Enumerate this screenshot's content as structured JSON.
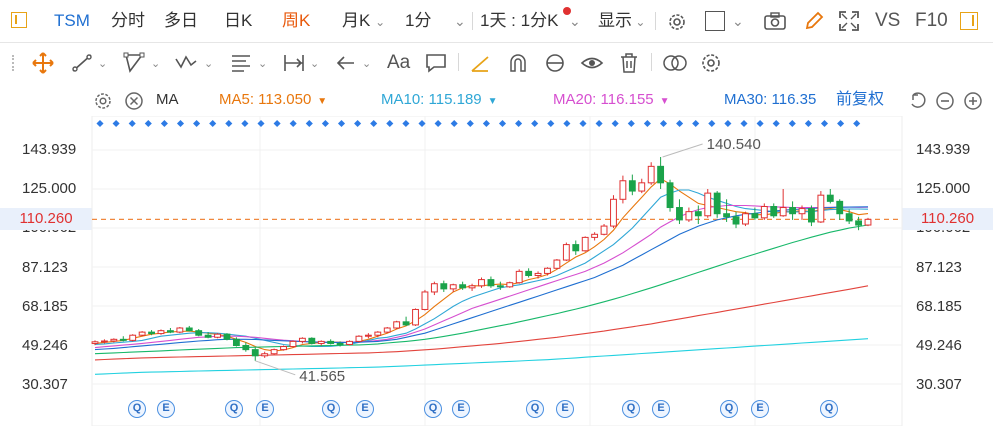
{
  "toolbar": {
    "ticker": "TSM",
    "periods": [
      "分时",
      "多日",
      "日K",
      "周K",
      "月K"
    ],
    "active_period": "周K",
    "interval": "1分",
    "combo": "1天 : 1分K",
    "display": "显示",
    "vs_label": "VS",
    "f10_label": "F10",
    "accent": "#e8590c"
  },
  "ma_bar": {
    "label": "MA",
    "items": [
      {
        "name": "MA5",
        "value_text": "MA5: 113.050",
        "color": "#e8770d"
      },
      {
        "name": "MA10",
        "value_text": "MA10: 115.189",
        "color": "#2fa7d6"
      },
      {
        "name": "MA20",
        "value_text": "MA20: 116.155",
        "color": "#d64fd0"
      },
      {
        "name": "MA30",
        "value_text": "MA30: 116.35",
        "color": "#1f6fd1"
      }
    ],
    "adjust": "前复权"
  },
  "chart_data": {
    "type": "candlestick",
    "y_ticks": [
      "143.939",
      "125.000",
      "106.062",
      "87.123",
      "68.185",
      "49.246",
      "30.307"
    ],
    "ylim": [
      30.307,
      143.939
    ],
    "current_price": "110.260",
    "current_price_value": 110.26,
    "annotations": {
      "high": "140.540",
      "low": "41.565"
    },
    "event_markers": [
      "Q",
      "E",
      "Q",
      "E",
      "Q",
      "E",
      "Q",
      "E",
      "Q",
      "E",
      "Q",
      "E",
      "Q",
      "E",
      "Q"
    ],
    "up_color": "#e03131",
    "down_color": "#1aa34a",
    "candles": [
      [
        50.0,
        51.5,
        49.2,
        50.8
      ],
      [
        50.8,
        52.0,
        50.0,
        51.2
      ],
      [
        51.2,
        52.5,
        50.5,
        52.0
      ],
      [
        52.0,
        53.5,
        51.0,
        51.5
      ],
      [
        51.5,
        54.5,
        51.0,
        54.0
      ],
      [
        54.0,
        56.0,
        53.5,
        55.5
      ],
      [
        55.5,
        56.5,
        54.0,
        54.8
      ],
      [
        54.8,
        56.8,
        54.2,
        56.2
      ],
      [
        56.2,
        57.5,
        55.0,
        55.5
      ],
      [
        55.5,
        58.0,
        55.0,
        57.5
      ],
      [
        57.5,
        58.5,
        55.8,
        56.2
      ],
      [
        56.2,
        57.0,
        53.5,
        54.0
      ],
      [
        54.0,
        55.5,
        52.5,
        53.0
      ],
      [
        53.0,
        55.0,
        52.5,
        54.5
      ],
      [
        54.5,
        55.0,
        51.5,
        52.0
      ],
      [
        52.0,
        53.0,
        48.5,
        49.0
      ],
      [
        49.0,
        50.5,
        46.0,
        47.0
      ],
      [
        47.0,
        48.0,
        41.565,
        44.0
      ],
      [
        44.0,
        46.0,
        43.0,
        45.0
      ],
      [
        45.0,
        47.5,
        44.5,
        47.0
      ],
      [
        47.0,
        49.0,
        46.5,
        48.5
      ],
      [
        48.5,
        51.5,
        48.0,
        51.0
      ],
      [
        51.0,
        53.0,
        50.0,
        52.5
      ],
      [
        52.5,
        53.0,
        49.5,
        50.0
      ],
      [
        50.0,
        51.5,
        49.0,
        51.0
      ],
      [
        51.0,
        52.0,
        49.5,
        50.0
      ],
      [
        50.0,
        51.0,
        48.5,
        49.5
      ],
      [
        49.5,
        51.5,
        49.0,
        51.0
      ],
      [
        51.0,
        54.0,
        50.5,
        53.5
      ],
      [
        53.5,
        55.0,
        52.5,
        54.0
      ],
      [
        54.0,
        56.0,
        53.0,
        55.5
      ],
      [
        55.5,
        58.0,
        55.0,
        57.5
      ],
      [
        57.5,
        61.0,
        57.0,
        60.5
      ],
      [
        60.5,
        63.0,
        58.5,
        59.0
      ],
      [
        59.0,
        67.0,
        58.5,
        66.5
      ],
      [
        66.5,
        76.0,
        66.0,
        75.0
      ],
      [
        75.0,
        80.0,
        73.5,
        79.0
      ],
      [
        79.0,
        80.5,
        75.0,
        76.5
      ],
      [
        76.5,
        79.0,
        75.0,
        78.5
      ],
      [
        78.5,
        80.0,
        76.0,
        77.0
      ],
      [
        77.0,
        79.0,
        75.5,
        78.0
      ],
      [
        78.0,
        82.0,
        77.0,
        81.0
      ],
      [
        81.0,
        82.5,
        77.0,
        78.0
      ],
      [
        78.0,
        80.0,
        76.0,
        77.5
      ],
      [
        77.5,
        80.0,
        77.0,
        79.5
      ],
      [
        79.5,
        86.0,
        79.0,
        85.0
      ],
      [
        85.0,
        86.5,
        82.0,
        83.0
      ],
      [
        83.0,
        85.0,
        81.5,
        84.0
      ],
      [
        84.0,
        87.0,
        83.0,
        86.5
      ],
      [
        86.5,
        91.0,
        86.0,
        90.5
      ],
      [
        90.5,
        99.0,
        90.0,
        98.0
      ],
      [
        98.0,
        100.0,
        93.0,
        95.0
      ],
      [
        95.0,
        102.0,
        94.5,
        101.5
      ],
      [
        101.5,
        104.0,
        100.0,
        103.0
      ],
      [
        103.0,
        108.0,
        102.5,
        107.0
      ],
      [
        107.0,
        122.0,
        106.0,
        120.0
      ],
      [
        120.0,
        131.5,
        118.0,
        129.0
      ],
      [
        129.0,
        132.0,
        122.0,
        124.0
      ],
      [
        124.0,
        130.0,
        123.0,
        128.0
      ],
      [
        128.0,
        138.0,
        127.0,
        136.0
      ],
      [
        136.0,
        140.54,
        125.0,
        128.0
      ],
      [
        128.0,
        129.5,
        114.0,
        116.0
      ],
      [
        116.0,
        120.0,
        108.0,
        110.0
      ],
      [
        110.0,
        116.0,
        109.0,
        114.0
      ],
      [
        114.0,
        117.0,
        108.0,
        112.0
      ],
      [
        112.0,
        125.0,
        111.0,
        123.0
      ],
      [
        123.0,
        124.0,
        111.0,
        113.0
      ],
      [
        113.0,
        120.0,
        109.0,
        111.5
      ],
      [
        111.5,
        114.0,
        106.0,
        108.0
      ],
      [
        108.0,
        114.0,
        107.0,
        113.0
      ],
      [
        113.0,
        116.0,
        110.0,
        111.0
      ],
      [
        111.0,
        118.0,
        110.0,
        116.5
      ],
      [
        116.5,
        118.0,
        111.0,
        112.0
      ],
      [
        112.0,
        125.0,
        111.5,
        116.0
      ],
      [
        116.0,
        119.0,
        110.0,
        113.0
      ],
      [
        113.0,
        117.0,
        110.0,
        115.5
      ],
      [
        115.5,
        117.0,
        107.0,
        109.0
      ],
      [
        109.0,
        124.0,
        108.5,
        122.0
      ],
      [
        122.0,
        125.0,
        118.0,
        119.0
      ],
      [
        119.0,
        120.0,
        110.0,
        113.0
      ],
      [
        113.0,
        115.0,
        108.0,
        109.5
      ],
      [
        109.5,
        111.5,
        105.0,
        107.5
      ],
      [
        107.5,
        111.0,
        107.0,
        110.26
      ]
    ],
    "ma_series": [
      {
        "name": "MA5",
        "color": "#e8770d",
        "values": [
          50,
          50.5,
          51,
          51.5,
          52.5,
          53.5,
          54.5,
          55,
          55.6,
          55.8,
          56,
          55.5,
          55,
          54.4,
          53.5,
          52,
          50.5,
          48.5,
          47,
          46.4,
          46.8,
          48,
          49.5,
          50,
          50.5,
          50.7,
          50.6,
          50.3,
          51,
          52,
          53.5,
          55,
          57,
          58.5,
          61,
          64,
          68,
          71.5,
          75,
          77,
          78,
          78,
          78.5,
          78.8,
          78.6,
          79.5,
          81,
          82,
          83.5,
          86,
          89,
          92,
          94,
          97,
          100.5,
          105,
          111,
          116,
          121,
          126,
          130,
          127.5,
          124,
          121,
          118,
          117,
          116,
          115,
          114,
          113.5,
          112.5,
          112.5,
          113,
          114,
          114,
          114.5,
          114,
          115,
          115.5,
          115,
          114,
          112.5,
          113.05
        ]
      },
      {
        "name": "MA10",
        "color": "#2fa7d6",
        "values": [
          49.5,
          49.8,
          50.2,
          50.6,
          51,
          51.5,
          52.5,
          53.5,
          54,
          54.5,
          55,
          55.2,
          55.2,
          55,
          54.6,
          54,
          53.5,
          52.5,
          51.5,
          50.5,
          49.5,
          49,
          48.8,
          48.5,
          48.5,
          48.6,
          49,
          49.5,
          50.5,
          51.5,
          52.5,
          53,
          54,
          55,
          57,
          59.5,
          62,
          65,
          68,
          70.5,
          72.5,
          74,
          75.5,
          77,
          77.8,
          78.5,
          79.5,
          80.5,
          81.5,
          83,
          85,
          87,
          89,
          92,
          95,
          98,
          102,
          106,
          111,
          116,
          121,
          123,
          124.5,
          124.5,
          123,
          121,
          119.5,
          118,
          116.5,
          115.5,
          115,
          114.5,
          114,
          114,
          113.8,
          114,
          114,
          114.5,
          115,
          115.2,
          115.3,
          115.3,
          115.189
        ]
      },
      {
        "name": "MA20",
        "color": "#d64fd0",
        "values": [
          48,
          48.4,
          48.8,
          49.2,
          49.6,
          50,
          50.5,
          51,
          51.5,
          52,
          52.5,
          53,
          53.2,
          53.5,
          53.5,
          53.5,
          53.3,
          53,
          52.5,
          52,
          51.6,
          51.3,
          51,
          50.8,
          50.6,
          50.5,
          50.5,
          50.6,
          50.8,
          51,
          51.5,
          52,
          53,
          54,
          55.5,
          57,
          59,
          61,
          63,
          65,
          67,
          68.5,
          70,
          71.5,
          73,
          74.5,
          76,
          77.5,
          79,
          80.5,
          82,
          83.5,
          85,
          87,
          89,
          91.5,
          94,
          97,
          100,
          103,
          106.5,
          109,
          111.5,
          113.5,
          115,
          116,
          116.5,
          117,
          117,
          117,
          116.8,
          116.5,
          116.3,
          116.2,
          116,
          116,
          116,
          116,
          116.1,
          116.2,
          116.2,
          116.1,
          116.155
        ]
      },
      {
        "name": "MA30",
        "color": "#1f6fd1",
        "values": [
          47,
          47.3,
          47.6,
          48,
          48.4,
          48.8,
          49.2,
          49.6,
          50,
          50.4,
          50.8,
          51.2,
          51.5,
          51.8,
          52,
          52,
          52,
          51.9,
          51.7,
          51.5,
          51.3,
          51.1,
          50.9,
          50.7,
          50.6,
          50.5,
          50.5,
          50.5,
          50.6,
          50.8,
          51,
          51.5,
          52,
          53,
          54,
          55,
          56.5,
          58,
          59.5,
          61,
          62.5,
          64,
          65.5,
          67,
          68.5,
          70,
          71.5,
          73,
          74.5,
          76,
          77.5,
          79,
          80.5,
          82,
          84,
          86,
          88,
          90.5,
          93,
          95.5,
          98,
          100.5,
          103,
          105,
          107,
          108.5,
          110,
          111,
          112,
          112.7,
          113.2,
          113.8,
          114.3,
          114.7,
          115,
          115.3,
          115.6,
          115.8,
          116,
          116.1,
          116.2,
          116.3,
          116.35
        ]
      },
      {
        "name": "MA60",
        "color": "#18b86a",
        "values": [
          45,
          45.2,
          45.4,
          45.6,
          45.8,
          46,
          46.2,
          46.4,
          46.6,
          46.8,
          47,
          47.2,
          47.4,
          47.6,
          47.8,
          48,
          48.1,
          48.2,
          48.3,
          48.4,
          48.5,
          48.6,
          48.7,
          48.8,
          48.9,
          49,
          49.1,
          49.2,
          49.3,
          49.5,
          49.8,
          50.2,
          50.6,
          51,
          51.5,
          52,
          52.7,
          53.4,
          54.2,
          55,
          55.9,
          56.8,
          57.7,
          58.6,
          59.5,
          60.5,
          61.5,
          62.5,
          63.5,
          64.5,
          65.6,
          66.7,
          67.8,
          69,
          70.2,
          71.5,
          72.8,
          74.2,
          75.6,
          77,
          78.5,
          80,
          81.5,
          83,
          84.5,
          86,
          87.5,
          89,
          90.5,
          92,
          93.4,
          94.8,
          96.2,
          97.6,
          99,
          100.3,
          101.6,
          102.8,
          104,
          105,
          106,
          106.8,
          107.5
        ]
      },
      {
        "name": "MA120",
        "color": "#e2443d",
        "values": [
          42,
          42.2,
          42.4,
          42.6,
          42.8,
          43,
          43.1,
          43.2,
          43.3,
          43.4,
          43.5,
          43.6,
          43.7,
          43.8,
          43.9,
          44,
          44.1,
          44.2,
          44.3,
          44.4,
          44.5,
          44.6,
          44.7,
          44.8,
          44.9,
          45,
          45.1,
          45.2,
          45.3,
          45.4,
          45.6,
          45.8,
          46,
          46.3,
          46.6,
          46.9,
          47.2,
          47.6,
          48,
          48.4,
          48.8,
          49.2,
          49.6,
          50,
          50.5,
          51,
          51.5,
          52,
          52.5,
          53,
          53.6,
          54.2,
          54.8,
          55.4,
          56,
          56.7,
          57.4,
          58.1,
          58.8,
          59.5,
          60.3,
          61.1,
          61.9,
          62.7,
          63.5,
          64.3,
          65.1,
          65.9,
          66.7,
          67.5,
          68.3,
          69.1,
          69.9,
          70.7,
          71.5,
          72.3,
          73.1,
          73.9,
          74.7,
          75.5,
          76.3,
          77.1,
          78
        ]
      },
      {
        "name": "MA250",
        "color": "#22d1e0",
        "values": [
          35,
          35.2,
          35.4,
          35.6,
          35.8,
          36,
          36.1,
          36.2,
          36.3,
          36.4,
          36.5,
          36.6,
          36.7,
          36.8,
          36.9,
          37,
          37.1,
          37.2,
          37.3,
          37.4,
          37.5,
          37.6,
          37.7,
          37.8,
          37.9,
          38,
          38.1,
          38.2,
          38.3,
          38.4,
          38.5,
          38.7,
          38.9,
          39.1,
          39.3,
          39.5,
          39.7,
          39.9,
          40.1,
          40.3,
          40.5,
          40.7,
          40.9,
          41.1,
          41.3,
          41.5,
          41.7,
          41.9,
          42.1,
          42.4,
          42.7,
          43,
          43.3,
          43.6,
          43.9,
          44.2,
          44.5,
          44.8,
          45.1,
          45.4,
          45.7,
          46,
          46.3,
          46.6,
          46.9,
          47.2,
          47.5,
          47.8,
          48.1,
          48.4,
          48.7,
          49,
          49.3,
          49.6,
          49.9,
          50.2,
          50.5,
          50.8,
          51.1,
          51.4,
          51.7,
          52,
          52.3
        ]
      }
    ]
  }
}
